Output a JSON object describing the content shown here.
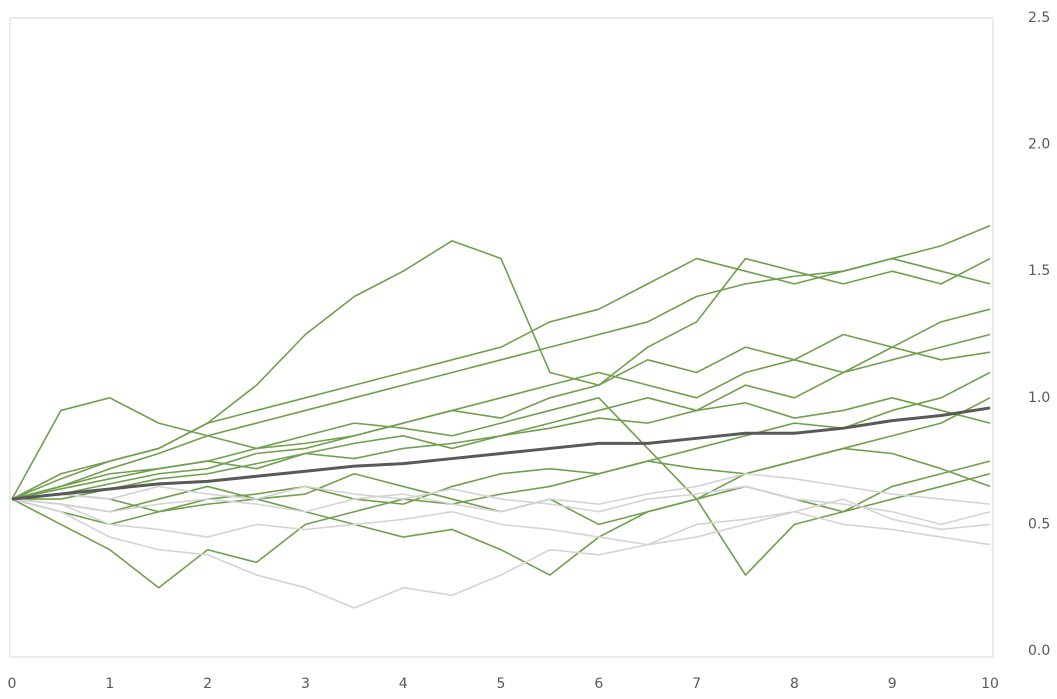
{
  "chart_data": {
    "type": "line",
    "x": [
      0,
      0.5,
      1,
      1.5,
      2,
      2.5,
      3,
      3.5,
      4,
      4.5,
      5,
      5.5,
      6,
      6.5,
      7,
      7.5,
      8,
      8.5,
      9,
      9.5,
      10
    ],
    "xlim": [
      0,
      10
    ],
    "xticks": [
      0,
      1,
      2,
      3,
      4,
      5,
      6,
      7,
      8,
      9,
      10
    ],
    "ylim": [
      0,
      2.5
    ],
    "yticks": [
      {
        "value": 0,
        "label": "0.0"
      },
      {
        "value": 0.5,
        "label": "0.5"
      },
      {
        "value": 1,
        "label": "1.0"
      },
      {
        "value": 1.5,
        "label": "1.5"
      },
      {
        "value": 2,
        "label": "2.0"
      },
      {
        "value": 2.5,
        "label": "2.5"
      }
    ],
    "grid": false,
    "series": [
      {
        "color": "#70a04d",
        "values": [
          0.6,
          0.7,
          0.75,
          0.8,
          0.9,
          1.05,
          1.25,
          1.4,
          1.5,
          1.62,
          1.55,
          1.1,
          1.05,
          1.15,
          1.1,
          1.2,
          1.15,
          1.25,
          1.2,
          1.3,
          1.35
        ]
      },
      {
        "color": "#70a04d",
        "values": [
          0.6,
          0.65,
          0.72,
          0.78,
          0.85,
          0.9,
          0.95,
          1.0,
          1.05,
          1.1,
          1.15,
          1.2,
          1.25,
          1.3,
          1.4,
          1.45,
          1.48,
          1.5,
          1.55,
          1.6,
          1.68
        ]
      },
      {
        "color": "#70a04d",
        "values": [
          0.6,
          0.95,
          1.0,
          0.9,
          0.85,
          0.8,
          0.82,
          0.85,
          0.9,
          0.95,
          0.92,
          1.0,
          1.05,
          1.2,
          1.3,
          1.55,
          1.5,
          1.45,
          1.5,
          1.45,
          1.55
        ]
      },
      {
        "color": "#70a04d",
        "values": [
          0.6,
          0.5,
          0.4,
          0.25,
          0.4,
          0.35,
          0.5,
          0.55,
          0.6,
          0.58,
          0.62,
          0.65,
          0.7,
          0.75,
          0.8,
          0.85,
          0.9,
          0.88,
          0.95,
          1.0,
          1.1
        ]
      },
      {
        "color": "#70a04d",
        "values": [
          0.6,
          0.62,
          0.6,
          0.55,
          0.58,
          0.6,
          0.55,
          0.5,
          0.45,
          0.48,
          0.4,
          0.3,
          0.45,
          0.55,
          0.6,
          0.7,
          0.75,
          0.8,
          0.85,
          0.9,
          1.0
        ]
      },
      {
        "color": "#70a04d",
        "values": [
          0.6,
          0.65,
          0.7,
          0.72,
          0.75,
          0.8,
          0.85,
          0.9,
          0.88,
          0.85,
          0.9,
          0.95,
          1.0,
          0.8,
          0.6,
          0.3,
          0.5,
          0.55,
          0.65,
          0.7,
          0.75
        ]
      },
      {
        "color": "#70a04d",
        "values": [
          0.6,
          0.68,
          0.75,
          0.8,
          0.9,
          0.95,
          1.0,
          1.05,
          1.1,
          1.15,
          1.2,
          1.3,
          1.35,
          1.45,
          1.55,
          1.5,
          1.45,
          1.5,
          1.55,
          1.5,
          1.45
        ]
      },
      {
        "color": "#70a04d",
        "values": [
          0.6,
          0.58,
          0.55,
          0.6,
          0.65,
          0.6,
          0.62,
          0.7,
          0.65,
          0.6,
          0.55,
          0.6,
          0.5,
          0.55,
          0.6,
          0.65,
          0.6,
          0.55,
          0.6,
          0.65,
          0.7
        ]
      },
      {
        "color": "#70a04d",
        "values": [
          0.6,
          0.62,
          0.66,
          0.7,
          0.72,
          0.78,
          0.8,
          0.85,
          0.9,
          0.95,
          1.0,
          1.05,
          1.1,
          1.05,
          1.0,
          1.1,
          1.15,
          1.1,
          1.2,
          1.15,
          1.18
        ]
      },
      {
        "color": "#70a04d",
        "values": [
          0.6,
          0.6,
          0.64,
          0.68,
          0.7,
          0.74,
          0.78,
          0.76,
          0.8,
          0.82,
          0.85,
          0.9,
          0.95,
          1.0,
          0.95,
          1.05,
          1.0,
          1.1,
          1.15,
          1.2,
          1.25
        ]
      },
      {
        "color": "#70a04d",
        "values": [
          0.6,
          0.55,
          0.5,
          0.55,
          0.6,
          0.62,
          0.65,
          0.6,
          0.58,
          0.65,
          0.7,
          0.72,
          0.7,
          0.75,
          0.72,
          0.7,
          0.75,
          0.8,
          0.78,
          0.72,
          0.65
        ]
      },
      {
        "color": "#70a04d",
        "values": [
          0.6,
          0.64,
          0.68,
          0.72,
          0.75,
          0.72,
          0.78,
          0.82,
          0.85,
          0.8,
          0.85,
          0.88,
          0.92,
          0.9,
          0.95,
          0.98,
          0.92,
          0.95,
          1.0,
          0.95,
          0.9
        ]
      },
      {
        "color": "#d4d4d4",
        "values": [
          0.6,
          0.55,
          0.45,
          0.4,
          0.38,
          0.3,
          0.25,
          0.17,
          0.25,
          0.22,
          0.3,
          0.4,
          0.38,
          0.42,
          0.45,
          0.5,
          0.55,
          0.5,
          0.48,
          0.45,
          0.42
        ]
      },
      {
        "color": "#d4d4d4",
        "values": [
          0.6,
          0.58,
          0.5,
          0.48,
          0.45,
          0.5,
          0.48,
          0.5,
          0.52,
          0.55,
          0.5,
          0.48,
          0.45,
          0.42,
          0.5,
          0.52,
          0.55,
          0.6,
          0.52,
          0.48,
          0.5
        ]
      },
      {
        "color": "#d4d4d4",
        "values": [
          0.6,
          0.62,
          0.6,
          0.65,
          0.62,
          0.6,
          0.65,
          0.62,
          0.6,
          0.64,
          0.6,
          0.58,
          0.55,
          0.6,
          0.62,
          0.65,
          0.6,
          0.58,
          0.55,
          0.5,
          0.55
        ]
      },
      {
        "color": "#d4d4d4",
        "values": [
          0.6,
          0.58,
          0.55,
          0.58,
          0.6,
          0.58,
          0.55,
          0.6,
          0.62,
          0.58,
          0.55,
          0.6,
          0.58,
          0.62,
          0.65,
          0.7,
          0.68,
          0.65,
          0.62,
          0.6,
          0.58
        ]
      },
      {
        "color": "#595959",
        "values": [
          0.6,
          0.62,
          0.64,
          0.66,
          0.67,
          0.69,
          0.71,
          0.73,
          0.74,
          0.76,
          0.78,
          0.8,
          0.82,
          0.82,
          0.84,
          0.86,
          0.86,
          0.88,
          0.91,
          0.93,
          0.96
        ]
      }
    ]
  }
}
